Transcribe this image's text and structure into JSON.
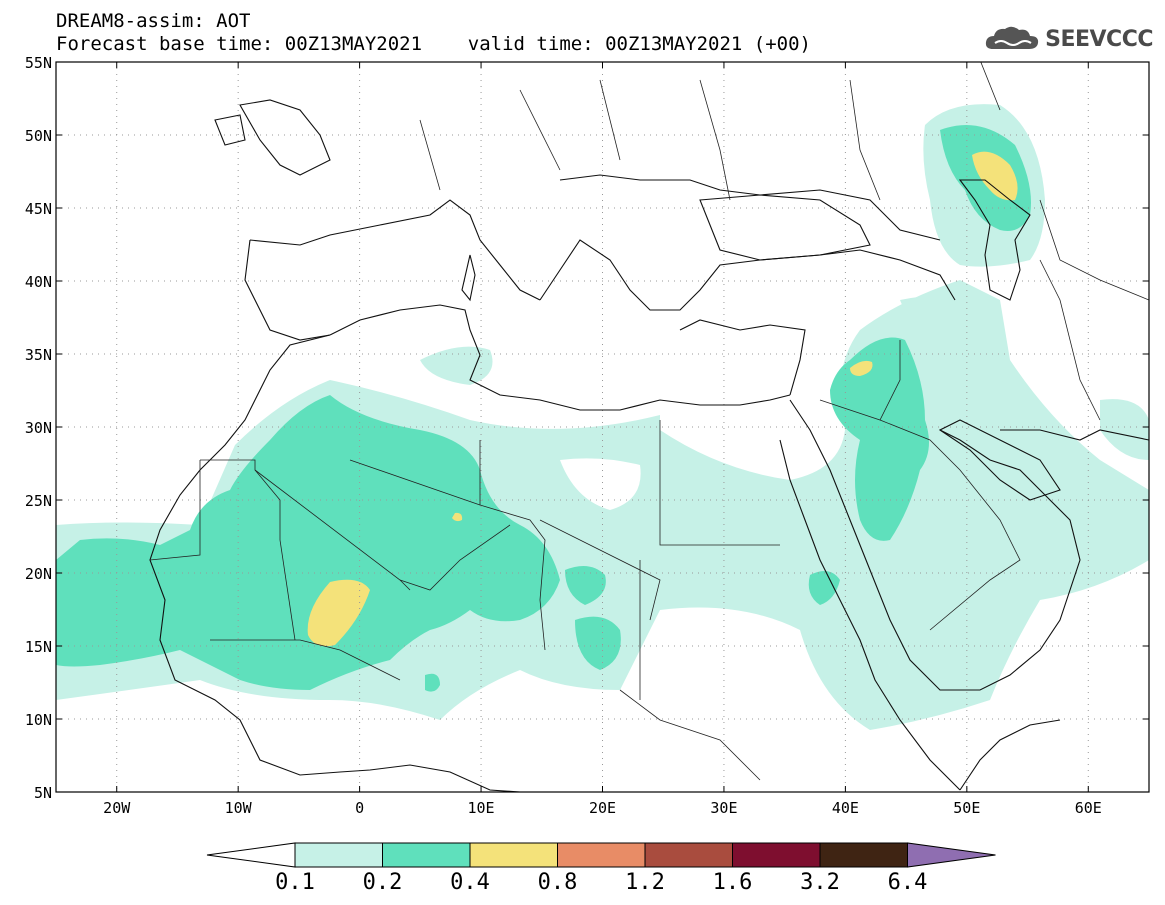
{
  "title": {
    "line1": "DREAM8-assim: AOT",
    "line2": "Forecast base time: 00Z13MAY2021    valid time: 00Z13MAY2021 (+00)"
  },
  "logo": {
    "text": "SEEVCCC",
    "icon": "cloud-icon"
  },
  "map": {
    "lat_ticks": [
      "55N",
      "50N",
      "45N",
      "40N",
      "35N",
      "30N",
      "25N",
      "20N",
      "15N",
      "10N",
      "5N"
    ],
    "lon_ticks": [
      "20W",
      "10W",
      "0",
      "10E",
      "20E",
      "30E",
      "40E",
      "50E",
      "60E"
    ],
    "lat_range": [
      5,
      55
    ],
    "lon_range": [
      -25,
      65
    ],
    "grid": "dotted"
  },
  "colorbar": {
    "labels": [
      "0.1",
      "0.2",
      "0.4",
      "0.8",
      "1.2",
      "1.6",
      "3.2",
      "6.4"
    ],
    "colors": [
      "#ffffff",
      "#c6f1e7",
      "#5fe0bc",
      "#f4e27a",
      "#e88c66",
      "#a94c3e",
      "#7e0e2f",
      "#3f2413",
      "#8f6eb1"
    ]
  },
  "levels": {
    "l1": "#c6f1e7",
    "l2": "#5fe0bc",
    "l3": "#f4e27a"
  }
}
